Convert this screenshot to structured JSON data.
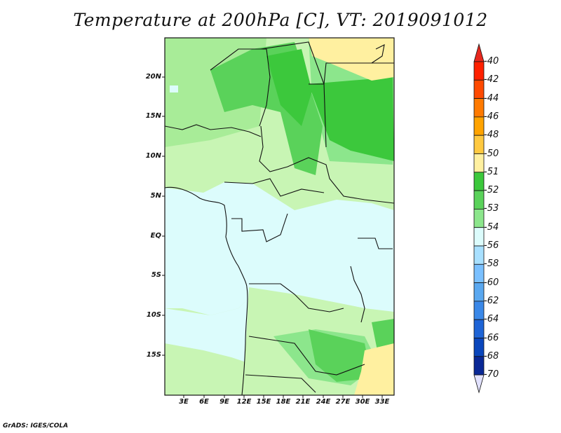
{
  "title": "Temperature at 200hPa [C], VT: 2019091012",
  "credit": "GrADS: IGES/COLA",
  "map": {
    "lat_labels": [
      "20N",
      "15N",
      "10N",
      "5N",
      "EQ",
      "5S",
      "10S",
      "15S"
    ],
    "lon_labels": [
      "3E",
      "6E",
      "9E",
      "12E",
      "15E",
      "18E",
      "21E",
      "24E",
      "27E",
      "30E",
      "33E"
    ]
  },
  "colorbar": {
    "labels": [
      "-40",
      "-42",
      "-44",
      "-46",
      "-48",
      "-50",
      "-51",
      "-52",
      "-53",
      "-54",
      "-56",
      "-58",
      "-60",
      "-62",
      "-64",
      "-66",
      "-68",
      "-70"
    ],
    "colors": [
      "#ff2000",
      "#ff4a00",
      "#ff7a00",
      "#ffa300",
      "#ffc940",
      "#fff0a0",
      "#3cc83c",
      "#5ad25a",
      "#8ce68c",
      "#dcfcfc",
      "#a8e0ff",
      "#7ac0ff",
      "#5aa8f0",
      "#3a88e8",
      "#1e64d6",
      "#0a46bc",
      "#0a2896",
      "#000a6e"
    ],
    "top_triangle_color": "#e8281e",
    "bottom_triangle_color": "#e2e2ff"
  },
  "field_colors": {
    "cold_54": "#dcfcfc",
    "light_53": "#c8f5b4",
    "mid_53": "#8ce68c",
    "green_52": "#5ad25a",
    "dark_51": "#3cc83c",
    "warm_50": "#fff0a0"
  }
}
